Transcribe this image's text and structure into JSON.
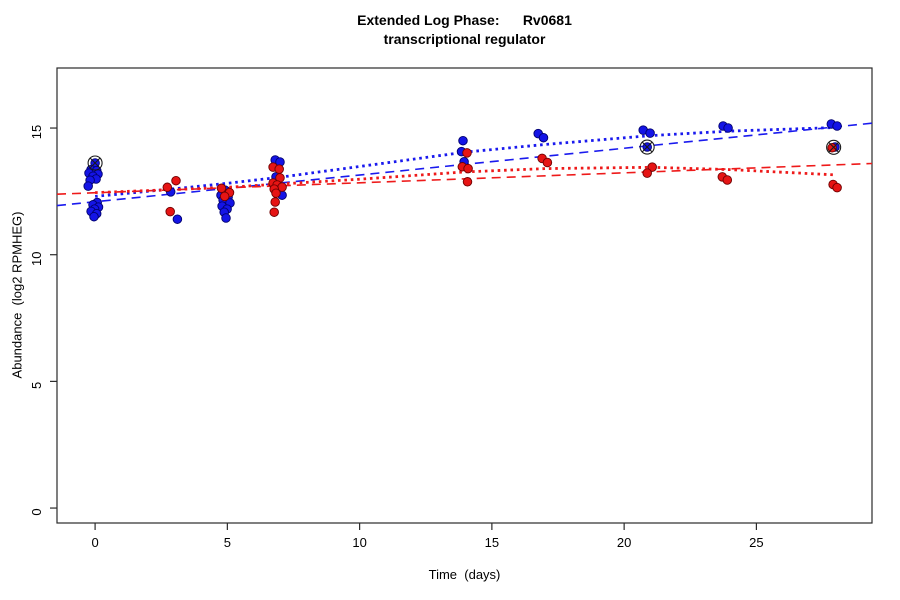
{
  "title": {
    "line1": "Extended Log Phase:      Rv0681",
    "line2": "transcriptional regulator"
  },
  "axes": {
    "x": {
      "label": "Time  (days)"
    },
    "y": {
      "label": "Abundance  (log2 RPMHEG)"
    }
  },
  "chart_data": {
    "type": "scatter",
    "title": "Extended Log Phase: Rv0681 transcriptional regulator",
    "xlabel": "Time (days)",
    "ylabel": "Abundance (log2 RPMHEG)",
    "xlim": [
      -1.44,
      29.37
    ],
    "ylim": [
      -0.59,
      17.37
    ],
    "x_ticks": [
      0,
      5,
      10,
      15,
      20,
      25
    ],
    "y_ticks": [
      0,
      5,
      10,
      15
    ],
    "grid": false,
    "colors": {
      "blue_fill": "#1414E6",
      "blue_stroke": "#00006E",
      "red_fill": "#E61414",
      "red_stroke": "#6E0000",
      "marker_stroke": "#1a1a1a",
      "axis": "#2a2a2a"
    },
    "series": [
      {
        "name": "blue",
        "color": "#1414E6",
        "points": [
          [
            0.0,
            13.62
          ],
          [
            -0.15,
            13.36
          ],
          [
            0.06,
            13.32
          ],
          [
            -0.23,
            13.22
          ],
          [
            0.11,
            13.18
          ],
          [
            -0.08,
            13.1
          ],
          [
            0.04,
            12.99
          ],
          [
            -0.19,
            12.94
          ],
          [
            -0.26,
            12.71
          ],
          [
            0.08,
            12.06
          ],
          [
            -0.08,
            11.97
          ],
          [
            0.13,
            11.88
          ],
          [
            -0.02,
            11.8
          ],
          [
            -0.15,
            11.71
          ],
          [
            0.06,
            11.62
          ],
          [
            -0.04,
            11.5
          ],
          [
            2.86,
            12.48
          ],
          [
            3.11,
            11.4
          ],
          [
            4.91,
            12.55
          ],
          [
            4.76,
            12.35
          ],
          [
            5.03,
            12.28
          ],
          [
            4.84,
            12.16
          ],
          [
            5.1,
            12.04
          ],
          [
            4.8,
            11.92
          ],
          [
            4.99,
            11.8
          ],
          [
            4.88,
            11.68
          ],
          [
            4.95,
            11.45
          ],
          [
            6.81,
            13.74
          ],
          [
            6.99,
            13.66
          ],
          [
            6.84,
            13.07
          ],
          [
            6.96,
            12.51
          ],
          [
            7.07,
            12.35
          ],
          [
            13.91,
            14.5
          ],
          [
            13.85,
            14.07
          ],
          [
            13.95,
            13.67
          ],
          [
            16.75,
            14.78
          ],
          [
            16.95,
            14.62
          ],
          [
            20.72,
            14.92
          ],
          [
            20.98,
            14.8
          ],
          [
            20.87,
            14.25
          ],
          [
            23.74,
            15.08
          ],
          [
            23.93,
            15.0
          ],
          [
            27.83,
            15.16
          ],
          [
            28.05,
            15.08
          ],
          [
            27.97,
            14.25
          ]
        ]
      },
      {
        "name": "red",
        "color": "#E61414",
        "points": [
          [
            3.06,
            12.92
          ],
          [
            2.73,
            12.66
          ],
          [
            2.84,
            11.7
          ],
          [
            4.78,
            12.62
          ],
          [
            5.08,
            12.45
          ],
          [
            4.9,
            12.3
          ],
          [
            6.73,
            13.46
          ],
          [
            6.96,
            13.38
          ],
          [
            6.99,
            13.03
          ],
          [
            6.73,
            12.83
          ],
          [
            6.88,
            12.75
          ],
          [
            7.07,
            12.67
          ],
          [
            6.77,
            12.59
          ],
          [
            6.84,
            12.43
          ],
          [
            6.81,
            12.08
          ],
          [
            6.77,
            11.68
          ],
          [
            14.06,
            14.02
          ],
          [
            13.88,
            13.47
          ],
          [
            14.1,
            13.4
          ],
          [
            14.08,
            12.88
          ],
          [
            16.9,
            13.8
          ],
          [
            17.1,
            13.64
          ],
          [
            21.06,
            13.46
          ],
          [
            20.87,
            13.22
          ],
          [
            23.71,
            13.07
          ],
          [
            23.9,
            12.95
          ],
          [
            27.86,
            14.22
          ],
          [
            27.9,
            12.77
          ],
          [
            28.05,
            12.65
          ]
        ]
      }
    ],
    "outlier_marks": [
      [
        0.0,
        13.62
      ],
      [
        20.87,
        14.25
      ],
      [
        27.92,
        14.24
      ]
    ],
    "lines": [
      {
        "name": "blue-dashed",
        "color": "#1A1AEE",
        "style": "dashed",
        "points": [
          [
            -1.44,
            11.94
          ],
          [
            29.37,
            15.19
          ]
        ]
      },
      {
        "name": "red-dashed",
        "color": "#EE1A1A",
        "style": "dashed",
        "points": [
          [
            -1.44,
            12.39
          ],
          [
            29.37,
            13.6
          ]
        ]
      },
      {
        "name": "blue-dotted",
        "color": "#1A1AEE",
        "style": "dotted",
        "points": [
          [
            0,
            12.3
          ],
          [
            3,
            12.6
          ],
          [
            5,
            12.82
          ],
          [
            7,
            13.06
          ],
          [
            10,
            13.48
          ],
          [
            14,
            14.05
          ],
          [
            17,
            14.35
          ],
          [
            21,
            14.7
          ],
          [
            24,
            14.88
          ],
          [
            28,
            15.02
          ]
        ]
      },
      {
        "name": "red-dotted",
        "color": "#EE1A1A",
        "style": "dotted",
        "points": [
          [
            0,
            12.45
          ],
          [
            3,
            12.57
          ],
          [
            5,
            12.66
          ],
          [
            7,
            12.79
          ],
          [
            10,
            12.98
          ],
          [
            14,
            13.27
          ],
          [
            17,
            13.4
          ],
          [
            21,
            13.45
          ],
          [
            24,
            13.36
          ],
          [
            28,
            13.15
          ]
        ]
      }
    ],
    "legend": null
  }
}
